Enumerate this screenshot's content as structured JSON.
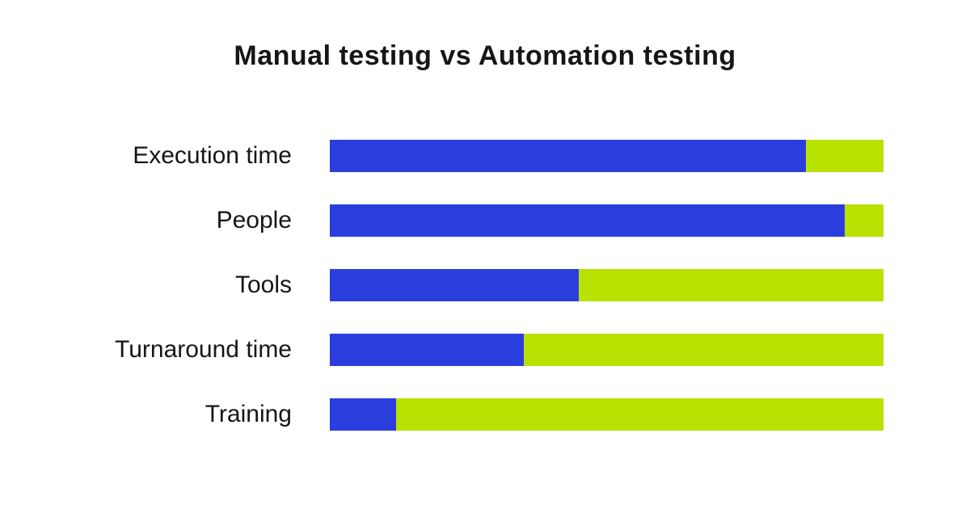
{
  "colors": {
    "background": "#ffffff",
    "text": "#15161a",
    "manual_blue": "#2B3EDD",
    "automation_green": "#B9E102"
  },
  "chart_data": {
    "type": "bar",
    "orientation": "horizontal",
    "stacked": true,
    "title": "Manual testing vs Automation testing",
    "categories": [
      "Execution time",
      "People",
      "Tools",
      "Turnaround time",
      "Training"
    ],
    "series": [
      {
        "name": "Manual testing",
        "color": "#2B3EDD",
        "values": [
          86,
          93,
          45,
          35,
          12
        ]
      },
      {
        "name": "Automation testing",
        "color": "#B9E102",
        "values": [
          14,
          7,
          55,
          65,
          88
        ]
      }
    ],
    "unit": "percent",
    "xlim": [
      0,
      100
    ],
    "legend_position": "none",
    "grid": false,
    "axis_labels_visible": false
  }
}
